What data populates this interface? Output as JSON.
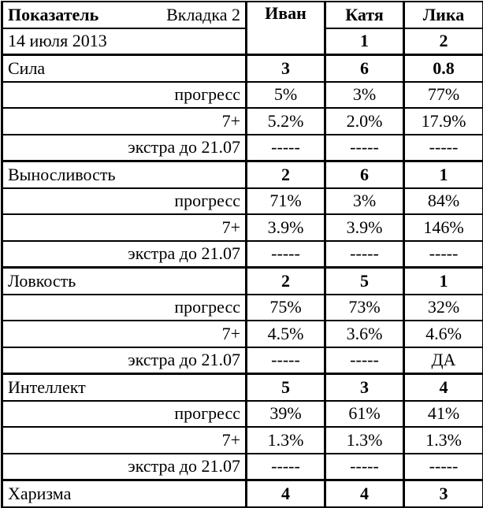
{
  "header": {
    "indicator_label": "Показатель",
    "tab_label": "Вкладка 2",
    "date": "14 июля 2013",
    "columns": [
      {
        "name": "Иван",
        "rank": ""
      },
      {
        "name": "Катя",
        "rank": "1"
      },
      {
        "name": "Лика",
        "rank": "2"
      }
    ]
  },
  "sections": [
    {
      "name": "Сила",
      "values": [
        "3",
        "6",
        "0.8"
      ],
      "rows": [
        {
          "label": "прогресс",
          "values": [
            "5%",
            "3%",
            "77%"
          ]
        },
        {
          "label": "7+",
          "values": [
            "5.2%",
            "2.0%",
            "17.9%"
          ]
        },
        {
          "label": "экстра до 21.07",
          "values": [
            "-----",
            "-----",
            "-----"
          ]
        }
      ]
    },
    {
      "name": "Выносливость",
      "values": [
        "2",
        "6",
        "1"
      ],
      "rows": [
        {
          "label": "прогресс",
          "values": [
            "71%",
            "3%",
            "84%"
          ]
        },
        {
          "label": "7+",
          "values": [
            "3.9%",
            "3.9%",
            "146%"
          ]
        },
        {
          "label": "экстра до 21.07",
          "values": [
            "-----",
            "-----",
            "-----"
          ]
        }
      ]
    },
    {
      "name": "Ловкость",
      "values": [
        "2",
        "5",
        "1"
      ],
      "rows": [
        {
          "label": "прогресс",
          "values": [
            "75%",
            "73%",
            "32%"
          ]
        },
        {
          "label": "7+",
          "values": [
            "4.5%",
            "3.6%",
            "4.6%"
          ]
        },
        {
          "label": "экстра до 21.07",
          "values": [
            "-----",
            "-----",
            "ДА"
          ]
        }
      ]
    },
    {
      "name": "Интеллект",
      "values": [
        "5",
        "3",
        "4"
      ],
      "rows": [
        {
          "label": "прогресс",
          "values": [
            "39%",
            "61%",
            "41%"
          ]
        },
        {
          "label": "7+",
          "values": [
            "1.3%",
            "1.3%",
            "1.3%"
          ]
        },
        {
          "label": "экстра до 21.07",
          "values": [
            "-----",
            "-----",
            "-----"
          ]
        }
      ]
    },
    {
      "name": "Харизма",
      "values": [
        "4",
        "4",
        "3"
      ],
      "rows": []
    }
  ]
}
